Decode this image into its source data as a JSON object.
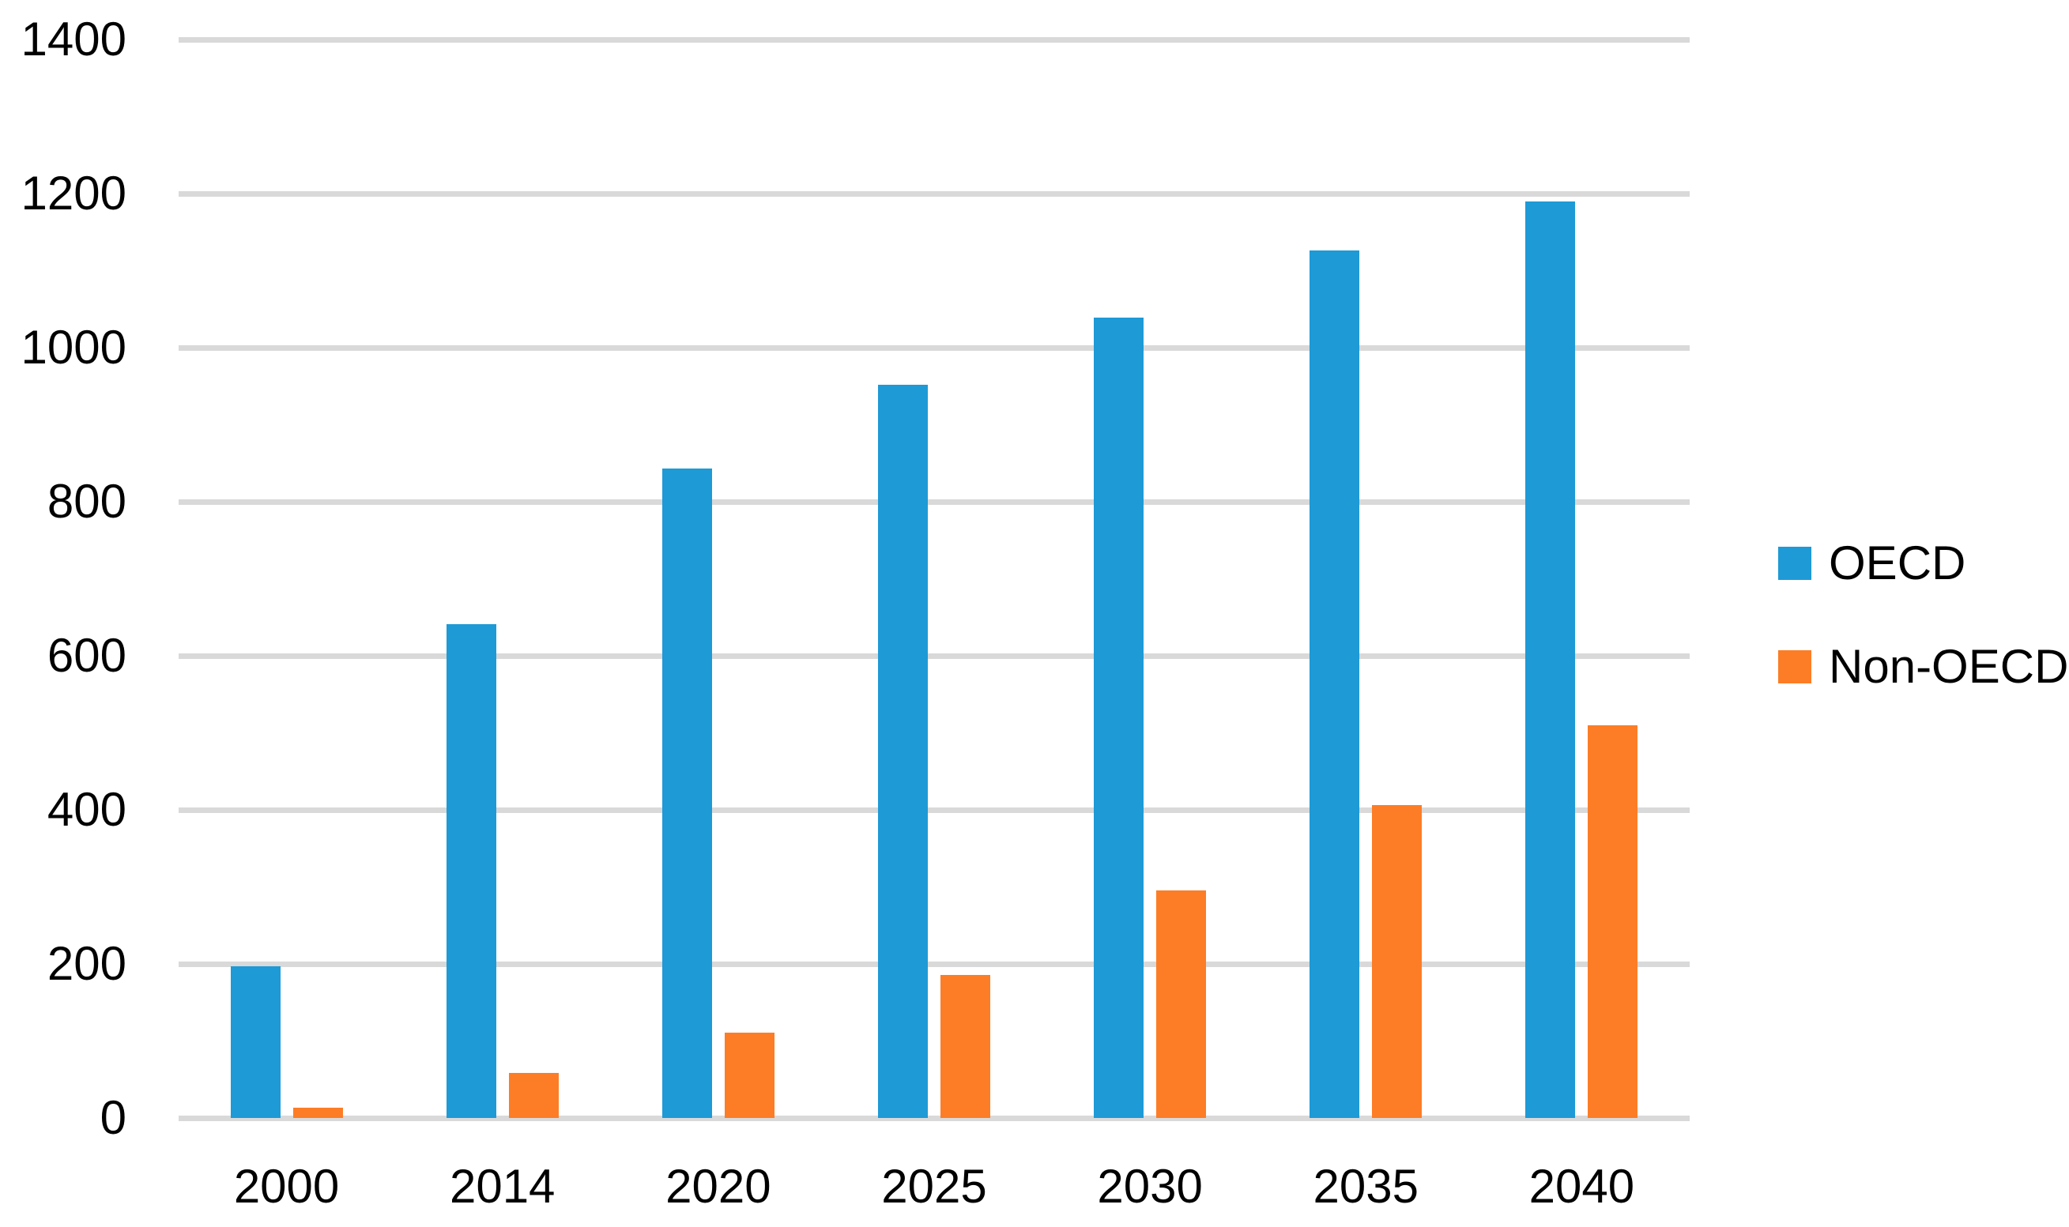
{
  "chart_data": {
    "type": "bar",
    "title": "",
    "xlabel": "",
    "ylabel": "",
    "categories": [
      "2000",
      "2014",
      "2020",
      "2025",
      "2030",
      "2035",
      "2040"
    ],
    "series": [
      {
        "name": "OECD",
        "color": "#1E9AD6",
        "values": [
          197,
          641,
          843,
          952,
          1039,
          1126,
          1190
        ]
      },
      {
        "name": "Non-OECD",
        "color": "#FC7D26",
        "values": [
          13,
          58,
          111,
          186,
          295,
          406,
          510
        ]
      }
    ],
    "ylim": [
      0,
      1400
    ],
    "yticks": [
      0,
      200,
      400,
      600,
      800,
      1000,
      1200,
      1400
    ],
    "grid": true,
    "gridline_color": "#D9D9D9",
    "legend_position": "right",
    "background": "#FFFFFF",
    "text_color": "#000000"
  }
}
